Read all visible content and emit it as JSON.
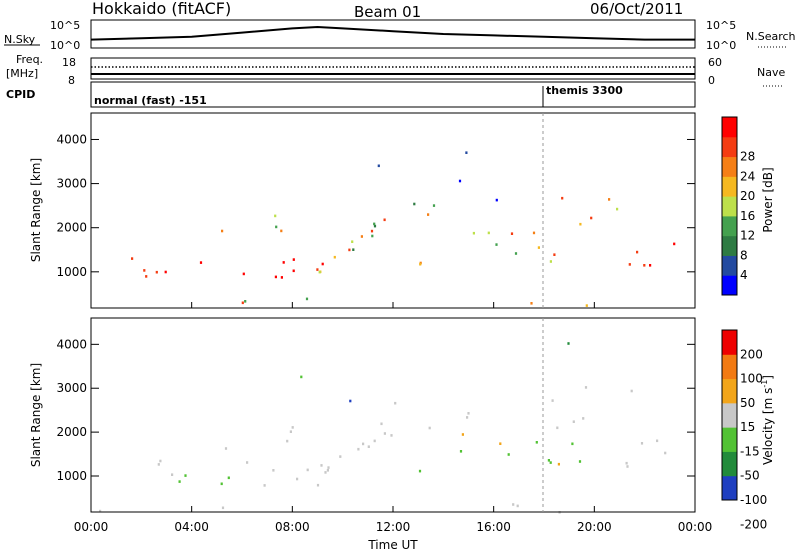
{
  "header": {
    "station": "Hokkaido (fitACF)",
    "beam": "Beam 01",
    "date": "06/Oct/2011"
  },
  "colors": {
    "power_scale": [
      "#0000ff",
      "#234aa0",
      "#2e7b43",
      "#44a14f",
      "#bde04b",
      "#f5b820",
      "#f57f16",
      "#f43c12",
      "#ff0000"
    ],
    "velocity_scale": [
      "#1f3fc0",
      "#228b3b",
      "#52c234",
      "#c8c8c8",
      "#f2a51a",
      "#f27a12",
      "#ee0000"
    ]
  },
  "chart_data": [
    {
      "type": "line",
      "title": "",
      "left_label": "N.Sky",
      "right_label": "N.Search",
      "yticks_left": [
        "10^5",
        "10^0"
      ],
      "yticks_right": [
        "10^5",
        "10^0"
      ],
      "x_hours": [
        0,
        2,
        4,
        6,
        8,
        9,
        10,
        12,
        14,
        16,
        18,
        20,
        22,
        24
      ],
      "series": [
        {
          "name": "N.Sky",
          "values": [
            0.3,
            0.35,
            0.4,
            0.55,
            0.7,
            0.75,
            0.7,
            0.6,
            0.5,
            0.45,
            0.4,
            0.35,
            0.3,
            0.3
          ]
        },
        {
          "name": "N.Search",
          "values": [
            0.2,
            0.2,
            0.2,
            0.2,
            0.2,
            0.2,
            0.2,
            0.2,
            0.2,
            0.2,
            0.2,
            0.2,
            0.2,
            0.2
          ]
        }
      ]
    },
    {
      "type": "line",
      "left_label": "Freq. [MHz]",
      "right_label": "Nave",
      "yticks_left": [
        "18",
        "8"
      ],
      "yticks_right": [
        "60",
        "0"
      ],
      "series": [
        {
          "name": "Freq.",
          "values": [
            11,
            11
          ]
        },
        {
          "name": "Nave",
          "values": [
            15,
            15
          ]
        }
      ]
    },
    {
      "type": "table",
      "left_label": "CPID",
      "segments": [
        {
          "label": "normal (fast) -151",
          "start_hour": 0
        },
        {
          "label": "themis 3300",
          "start_hour": 18
        }
      ]
    },
    {
      "type": "heatmap",
      "ylabel": "Slant Range [km]",
      "yticks": [
        1000,
        2000,
        3000,
        4000
      ],
      "ylim": [
        180,
        4600
      ],
      "xlim": [
        0,
        24
      ],
      "colorbar": {
        "label": "Power [dB]",
        "ticks": [
          4,
          8,
          12,
          16,
          20,
          24,
          28
        ]
      }
    },
    {
      "type": "heatmap",
      "ylabel": "Slant Range [km]",
      "yticks": [
        1000,
        2000,
        3000,
        4000
      ],
      "ylim": [
        180,
        4600
      ],
      "xlim": [
        0,
        24
      ],
      "colorbar": {
        "label": "Velocity [m s",
        "label_sup": "-1",
        "label_end": "]",
        "ticks": [
          200,
          100,
          50,
          15,
          -15,
          -50,
          -100,
          -200
        ]
      }
    }
  ],
  "xaxis": {
    "title": "Time UT",
    "tick_labels": [
      "00:00",
      "04:00",
      "08:00",
      "12:00",
      "16:00",
      "20:00",
      "00:00"
    ]
  }
}
